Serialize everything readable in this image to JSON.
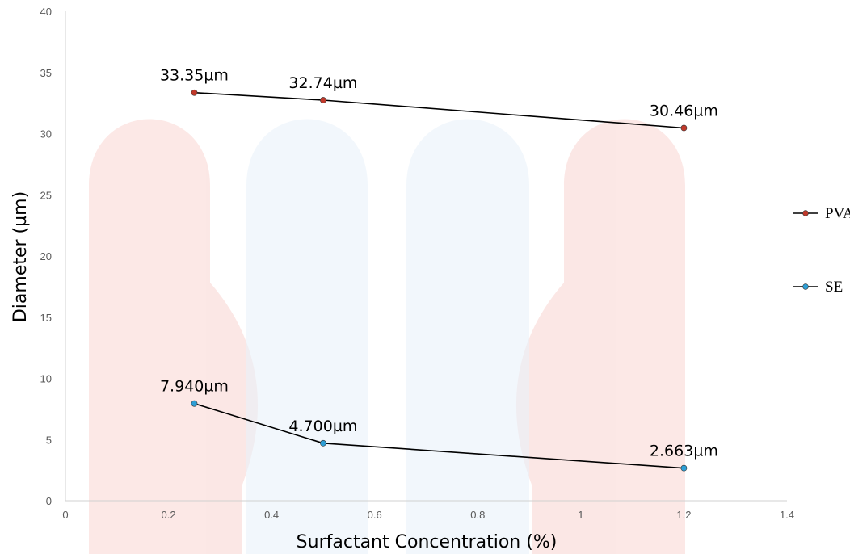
{
  "chart_data": {
    "type": "line",
    "title": "",
    "xlabel": "Surfactant Concentration (%)",
    "ylabel": "Diameter (µm)",
    "xlim": [
      0,
      1.4
    ],
    "ylim": [
      0,
      40
    ],
    "x_ticks": [
      "0",
      "0.2",
      "0.4",
      "0.6",
      "0.8",
      "1",
      "1.2",
      "1.4"
    ],
    "y_ticks": [
      "0",
      "5",
      "10",
      "15",
      "20",
      "25",
      "30",
      "35",
      "40"
    ],
    "grid": false,
    "legend_position": "right",
    "series": [
      {
        "name": "PVA",
        "color": "#c0392b",
        "x": [
          0.25,
          0.5,
          1.2
        ],
        "y": [
          33.35,
          32.74,
          30.46
        ],
        "labels": [
          "33.35µm",
          "32.74µm",
          "30.46µm"
        ]
      },
      {
        "name": "SE",
        "color": "#2e9fd6",
        "x": [
          0.25,
          0.5,
          1.2
        ],
        "y": [
          7.94,
          4.7,
          2.663
        ],
        "labels": [
          "7.940µm",
          "4.700µm",
          "2.663µm"
        ]
      }
    ]
  }
}
